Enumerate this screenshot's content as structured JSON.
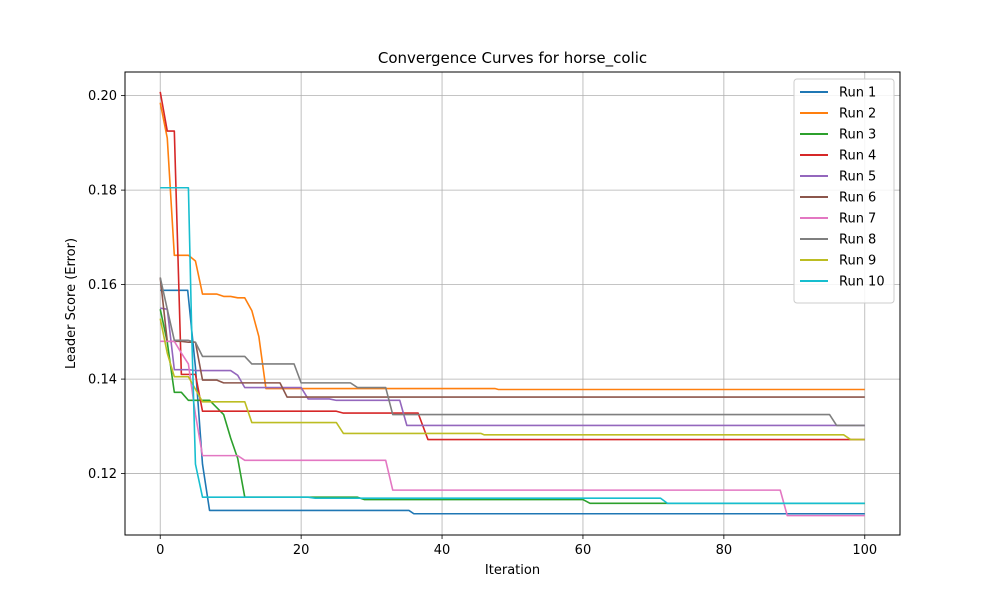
{
  "chart_data": {
    "type": "line",
    "title": "Convergence Curves for horse_colic",
    "xlabel": "Iteration",
    "ylabel": "Leader Score (Error)",
    "xlim": [
      -5,
      105
    ],
    "ylim": [
      0.107,
      0.205
    ],
    "xticks": [
      0,
      20,
      40,
      60,
      80,
      100
    ],
    "yticks": [
      0.12,
      0.14,
      0.16,
      0.18,
      0.2
    ],
    "ytick_labels": [
      "0.12",
      "0.14",
      "0.16",
      "0.18",
      "0.20"
    ],
    "grid": true,
    "legend_position": "upper right",
    "series": [
      {
        "name": "Run 1",
        "color": "#1f77b4",
        "points": [
          [
            0,
            0.1588
          ],
          [
            3.9,
            0.1588
          ],
          [
            5,
            0.1425
          ],
          [
            6,
            0.122
          ],
          [
            7,
            0.1122
          ],
          [
            35.3,
            0.1122
          ],
          [
            36,
            0.1115
          ],
          [
            100,
            0.1115
          ]
        ]
      },
      {
        "name": "Run 2",
        "color": "#ff7f0e",
        "points": [
          [
            0,
            0.1985
          ],
          [
            1,
            0.191
          ],
          [
            2,
            0.1662
          ],
          [
            4,
            0.1662
          ],
          [
            5,
            0.165
          ],
          [
            6,
            0.158
          ],
          [
            8,
            0.158
          ],
          [
            9,
            0.1575
          ],
          [
            10,
            0.1575
          ],
          [
            11,
            0.1572
          ],
          [
            12,
            0.1572
          ],
          [
            13,
            0.1545
          ],
          [
            14,
            0.149
          ],
          [
            15,
            0.138
          ],
          [
            47.5,
            0.138
          ],
          [
            48,
            0.1378
          ],
          [
            100,
            0.1378
          ]
        ]
      },
      {
        "name": "Run 3",
        "color": "#2ca02c",
        "points": [
          [
            0,
            0.1548
          ],
          [
            1,
            0.1478
          ],
          [
            2,
            0.1372
          ],
          [
            3,
            0.1372
          ],
          [
            4,
            0.1355
          ],
          [
            7,
            0.1355
          ],
          [
            9,
            0.1325
          ],
          [
            10,
            0.1275
          ],
          [
            11,
            0.1232
          ],
          [
            12,
            0.115
          ],
          [
            28,
            0.115
          ],
          [
            29,
            0.1145
          ],
          [
            60,
            0.1145
          ],
          [
            61,
            0.1137
          ],
          [
            100,
            0.1137
          ]
        ]
      },
      {
        "name": "Run 4",
        "color": "#d62728",
        "points": [
          [
            0,
            0.2008
          ],
          [
            1,
            0.1925
          ],
          [
            2,
            0.1925
          ],
          [
            3,
            0.141
          ],
          [
            5,
            0.141
          ],
          [
            6,
            0.1332
          ],
          [
            25,
            0.1332
          ],
          [
            26,
            0.1328
          ],
          [
            36.6,
            0.1328
          ],
          [
            38,
            0.1272
          ],
          [
            100,
            0.1272
          ]
        ]
      },
      {
        "name": "Run 5",
        "color": "#9467bd",
        "points": [
          [
            0,
            0.155
          ],
          [
            1,
            0.1548
          ],
          [
            2,
            0.142
          ],
          [
            4,
            0.142
          ],
          [
            5,
            0.1418
          ],
          [
            10,
            0.1418
          ],
          [
            11,
            0.1408
          ],
          [
            12,
            0.1382
          ],
          [
            20,
            0.1382
          ],
          [
            21,
            0.1358
          ],
          [
            24,
            0.1358
          ],
          [
            25,
            0.1355
          ],
          [
            34,
            0.1355
          ],
          [
            35,
            0.1302
          ],
          [
            100,
            0.1302
          ]
        ]
      },
      {
        "name": "Run 6",
        "color": "#8c564b",
        "points": [
          [
            0,
            0.1615
          ],
          [
            1,
            0.148
          ],
          [
            3,
            0.148
          ],
          [
            4,
            0.1478
          ],
          [
            5,
            0.1478
          ],
          [
            6,
            0.1398
          ],
          [
            8,
            0.1398
          ],
          [
            9,
            0.1392
          ],
          [
            17,
            0.1392
          ],
          [
            18,
            0.1362
          ],
          [
            100,
            0.1362
          ]
        ]
      },
      {
        "name": "Run 7",
        "color": "#e377c2",
        "points": [
          [
            0,
            0.148
          ],
          [
            2,
            0.148
          ],
          [
            3,
            0.1455
          ],
          [
            4,
            0.1432
          ],
          [
            5,
            0.1325
          ],
          [
            6,
            0.1238
          ],
          [
            11,
            0.1238
          ],
          [
            12,
            0.1228
          ],
          [
            32,
            0.1228
          ],
          [
            33,
            0.1165
          ],
          [
            88,
            0.1165
          ],
          [
            89,
            0.1111
          ],
          [
            100,
            0.1111
          ]
        ]
      },
      {
        "name": "Run 8",
        "color": "#7f7f7f",
        "points": [
          [
            0,
            0.1615
          ],
          [
            1,
            0.1548
          ],
          [
            2,
            0.1482
          ],
          [
            4,
            0.1482
          ],
          [
            5,
            0.1478
          ],
          [
            6,
            0.1448
          ],
          [
            12,
            0.1448
          ],
          [
            13,
            0.1432
          ],
          [
            19,
            0.1432
          ],
          [
            20,
            0.1392
          ],
          [
            27,
            0.1392
          ],
          [
            28,
            0.1382
          ],
          [
            32,
            0.1382
          ],
          [
            33,
            0.1325
          ],
          [
            95,
            0.1325
          ],
          [
            96,
            0.1302
          ],
          [
            100,
            0.1302
          ]
        ]
      },
      {
        "name": "Run 9",
        "color": "#bcbd22",
        "points": [
          [
            0,
            0.1528
          ],
          [
            1,
            0.1455
          ],
          [
            2,
            0.1405
          ],
          [
            4,
            0.1405
          ],
          [
            6,
            0.1352
          ],
          [
            12,
            0.1352
          ],
          [
            13,
            0.1308
          ],
          [
            25,
            0.1308
          ],
          [
            26,
            0.1285
          ],
          [
            45.5,
            0.1285
          ],
          [
            46,
            0.1282
          ],
          [
            97,
            0.1282
          ],
          [
            98,
            0.1272
          ],
          [
            100,
            0.1272
          ]
        ]
      },
      {
        "name": "Run 10",
        "color": "#17becf",
        "points": [
          [
            0,
            0.1805
          ],
          [
            4,
            0.1805
          ],
          [
            4.5,
            0.148
          ],
          [
            5,
            0.122
          ],
          [
            6,
            0.115
          ],
          [
            21,
            0.115
          ],
          [
            22,
            0.1148
          ],
          [
            71,
            0.1148
          ],
          [
            72,
            0.1137
          ],
          [
            100,
            0.1137
          ]
        ]
      }
    ]
  }
}
